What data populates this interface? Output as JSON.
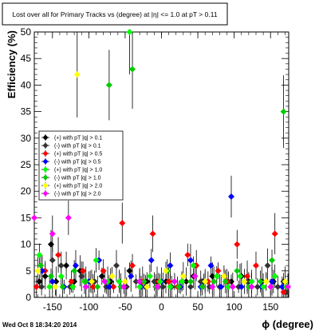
{
  "chart_data": {
    "type": "scatter",
    "title": "Lost over all for Primary Tracks vs (degree) at |η| <= 1.0 at pT > 0.11",
    "xlabel": "ϕ (degree)",
    "ylabel": "Efficiency (%)",
    "xlim": [
      -175,
      175
    ],
    "ylim": [
      0,
      50
    ],
    "x_ticks": [
      "-150",
      "-100",
      "-50",
      "0",
      "50",
      "100",
      "150"
    ],
    "y_ticks": [
      "0",
      "5",
      "10",
      "15",
      "20",
      "25",
      "30",
      "35",
      "40",
      "45",
      "50"
    ],
    "grid": false,
    "legend_position": "center-left",
    "series": [
      {
        "name": "(+) with pT |q| > 0.1",
        "color": "#000000",
        "x": [
          -168,
          -160,
          -152,
          -145,
          -131,
          -120,
          -112,
          -98,
          -82,
          -70,
          -58,
          -44,
          -30,
          -20,
          -6,
          6,
          18,
          34,
          44,
          58,
          70,
          86,
          96,
          110,
          120,
          138,
          154,
          168
        ],
        "y": [
          3,
          4,
          10,
          3,
          6,
          3,
          5,
          3,
          4,
          3,
          3,
          5,
          3,
          3,
          3,
          3,
          3,
          3,
          4,
          3,
          4,
          4,
          3,
          4,
          3,
          3,
          3,
          3
        ]
      },
      {
        "name": "(-) with pT |q| > 0.1",
        "color": "#333333",
        "x": [
          -165,
          -150,
          -138,
          -126,
          -110,
          -92,
          -76,
          -62,
          -48,
          -35,
          -22,
          -10,
          2,
          14,
          28,
          40,
          54,
          66,
          80,
          92,
          106,
          118,
          132,
          146,
          160,
          172
        ],
        "y": [
          2,
          7,
          6,
          2,
          4,
          3,
          2,
          6,
          2,
          3,
          2,
          3,
          2,
          2,
          3,
          2,
          3,
          2,
          2,
          3,
          2,
          3,
          2,
          6,
          2,
          1
        ]
      },
      {
        "name": "(+) with pT |q| > 0.5",
        "color": "#ff0000",
        "x": [
          -172,
          -160,
          -142,
          -124,
          -108,
          -94,
          -80,
          -66,
          -54,
          -40,
          -26,
          -12,
          -4,
          10,
          22,
          36,
          48,
          64,
          78,
          90,
          104,
          118,
          130,
          144,
          156,
          168
        ],
        "y": [
          2,
          5,
          8,
          3,
          5,
          2,
          5,
          2,
          14,
          6,
          3,
          12,
          3,
          3,
          2,
          8,
          6,
          3,
          5,
          3,
          10,
          4,
          6,
          3,
          12,
          1
        ]
      },
      {
        "name": "(-) with pT |q| > 0.5",
        "color": "#0000ff",
        "x": [
          -164,
          -150,
          -134,
          -118,
          -100,
          -86,
          -72,
          -56,
          -42,
          -28,
          -14,
          0,
          12,
          26,
          40,
          54,
          68,
          82,
          96,
          110,
          124,
          138,
          152,
          166
        ],
        "y": [
          5,
          3,
          2,
          6,
          3,
          7,
          2,
          2,
          4,
          2,
          7,
          3,
          6,
          2,
          7,
          2,
          6,
          2,
          19,
          2,
          3,
          2,
          3,
          2
        ]
      },
      {
        "name": "(+) with pT |q| > 1.0",
        "color": "#00ff00",
        "x": [
          -168,
          -154,
          -138,
          -122,
          -106,
          -90,
          -74,
          -58,
          -44,
          -30,
          -16,
          -2,
          12,
          28,
          44,
          60,
          76,
          92,
          108,
          124,
          140,
          156,
          172
        ],
        "y": [
          8,
          2,
          4,
          2,
          3,
          7,
          3,
          3,
          50,
          2,
          4,
          3,
          2,
          3,
          6,
          3,
          4,
          2,
          4,
          3,
          2,
          4,
          2
        ]
      },
      {
        "name": "(-) with pT |q| > 1.0",
        "color": "#00cc00",
        "x": [
          -166,
          -152,
          -136,
          -120,
          -104,
          -88,
          -72,
          -56,
          -40,
          -24,
          -8,
          8,
          24,
          40,
          56,
          72,
          88,
          104,
          120,
          136,
          152,
          168
        ],
        "y": [
          6,
          4,
          2,
          5,
          3,
          2,
          40,
          2,
          43,
          3,
          2,
          5,
          2,
          3,
          2,
          3,
          3,
          5,
          2,
          3,
          7,
          35
        ]
      },
      {
        "name": "(+) with pT |q| > 2.0",
        "color": "#ffff00",
        "x": [
          -170,
          -146,
          -116,
          -96,
          -68,
          -50,
          -20,
          6,
          30,
          60,
          86,
          114,
          144,
          170
        ],
        "y": [
          5,
          2,
          42,
          3,
          4,
          3,
          2,
          5,
          4,
          3,
          4,
          3,
          3,
          3
        ]
      },
      {
        "name": "(-) with pT |q| > 2.0",
        "color": "#ff00ff",
        "x": [
          -176,
          -150,
          -128,
          -104,
          -78,
          -52,
          -30,
          -6,
          18,
          46,
          70,
          98,
          124,
          150,
          174
        ],
        "y": [
          15,
          12,
          15,
          2,
          3,
          2,
          3,
          2,
          3,
          4,
          2,
          2,
          2,
          2,
          2
        ]
      }
    ]
  },
  "footer": {
    "timestamp": "Wed Oct  8 18:34:20 2014"
  }
}
